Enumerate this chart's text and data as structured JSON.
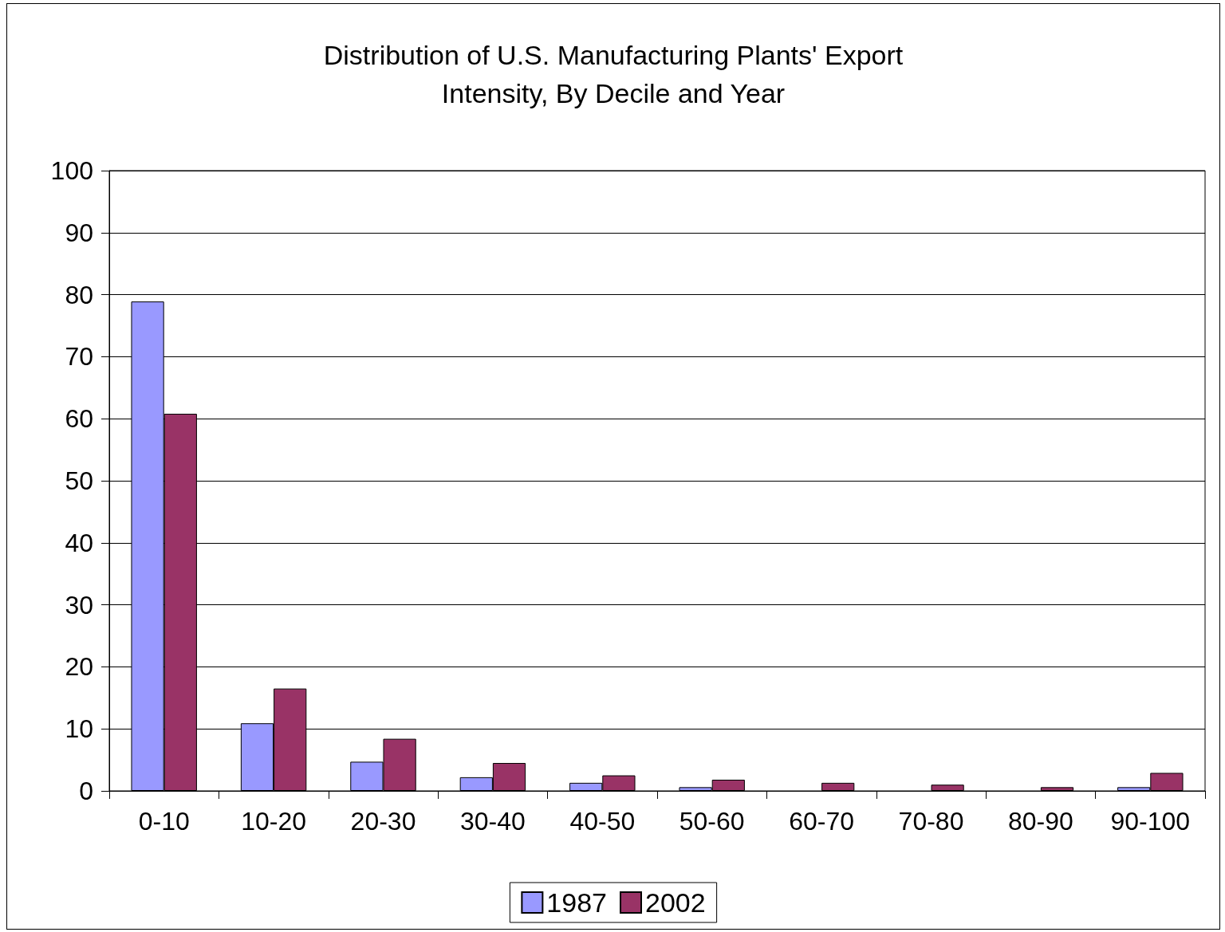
{
  "chart_data": {
    "type": "bar",
    "title": "Distribution of U.S. Manufacturing Plants' Export\nIntensity, By Decile and Year",
    "categories": [
      "0-10",
      "10-20",
      "20-30",
      "30-40",
      "40-50",
      "50-60",
      "60-70",
      "70-80",
      "80-90",
      "90-100"
    ],
    "series": [
      {
        "name": "1987",
        "color": "#9999ff",
        "values": [
          78.9,
          10.9,
          4.7,
          2.2,
          1.3,
          0.6,
          null,
          null,
          null,
          0.6
        ]
      },
      {
        "name": "2002",
        "color": "#993366",
        "values": [
          60.8,
          16.5,
          8.4,
          4.5,
          2.5,
          1.8,
          1.3,
          1.0,
          0.6,
          2.9
        ]
      }
    ],
    "ylim": [
      0,
      100
    ],
    "yticks": [
      0,
      10,
      20,
      30,
      40,
      50,
      60,
      70,
      80,
      90,
      100
    ],
    "grid": "y",
    "legend": "bottom"
  }
}
